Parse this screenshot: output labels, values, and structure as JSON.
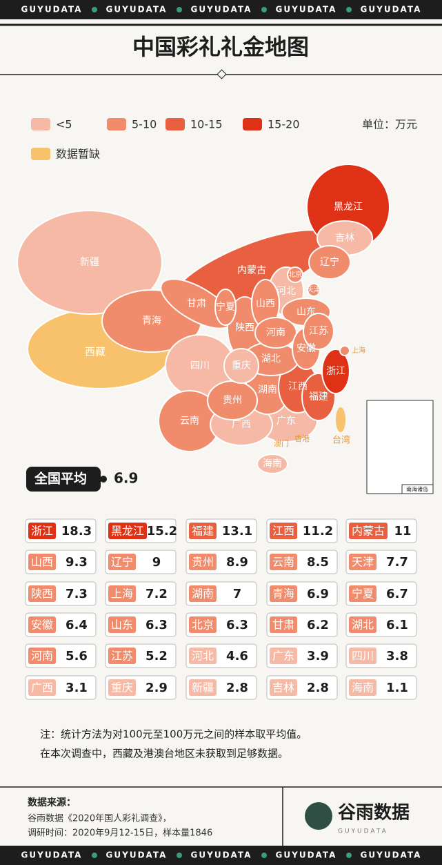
{
  "header": {
    "banner": "GUYUDATA",
    "title": "中国彩礼礼金地图"
  },
  "legend": {
    "bins": [
      {
        "label": "<5",
        "color": "#f6b9a6"
      },
      {
        "label": "5-10",
        "color": "#f08b6c"
      },
      {
        "label": "10-15",
        "color": "#e8603f"
      },
      {
        "label": "15-20",
        "color": "#df3115"
      }
    ],
    "missing": {
      "label": "数据暂缺",
      "color": "#f7c26b"
    },
    "unit": "单位：万元"
  },
  "provinces": [
    {
      "name": "浙江",
      "value": 18.3
    },
    {
      "name": "黑龙江",
      "value": 15.2
    },
    {
      "name": "福建",
      "value": 13.1
    },
    {
      "name": "江西",
      "value": 11.2
    },
    {
      "name": "内蒙古",
      "value": 11
    },
    {
      "name": "山西",
      "value": 9.3
    },
    {
      "name": "辽宁",
      "value": 9
    },
    {
      "name": "贵州",
      "value": 8.9
    },
    {
      "name": "云南",
      "value": 8.5
    },
    {
      "name": "天津",
      "value": 7.7
    },
    {
      "name": "陕西",
      "value": 7.3
    },
    {
      "name": "上海",
      "value": 7.2
    },
    {
      "name": "湖南",
      "value": 7
    },
    {
      "name": "青海",
      "value": 6.9
    },
    {
      "name": "宁夏",
      "value": 6.7
    },
    {
      "name": "安徽",
      "value": 6.4
    },
    {
      "name": "山东",
      "value": 6.3
    },
    {
      "name": "北京",
      "value": 6.3
    },
    {
      "name": "甘肃",
      "value": 6.2
    },
    {
      "name": "湖北",
      "value": 6.1
    },
    {
      "name": "河南",
      "value": 5.6
    },
    {
      "name": "江苏",
      "value": 5.2
    },
    {
      "name": "河北",
      "value": 4.6
    },
    {
      "name": "广东",
      "value": 3.9
    },
    {
      "name": "四川",
      "value": 3.8
    },
    {
      "name": "广西",
      "value": 3.1
    },
    {
      "name": "重庆",
      "value": 2.9
    },
    {
      "name": "新疆",
      "value": 2.8
    },
    {
      "name": "吉林",
      "value": 2.8
    },
    {
      "name": "海南",
      "value": 1.1
    }
  ],
  "map": {
    "extra_labels": [
      "西藏",
      "香港",
      "澳门",
      "台湾",
      "南海诸岛"
    ]
  },
  "average": {
    "label": "全国平均",
    "value": 6.9
  },
  "note": [
    "注：统计方法为对100元至100万元之间的样本取平均值。",
    "在本次调查中，西藏及港澳台地区未获取到足够数据。"
  ],
  "source": {
    "title": "数据来源：",
    "lines": [
      "谷雨数据《2020年国人彩礼调查》，",
      "调研时间：2020年9月12-15日，样本量1846"
    ]
  },
  "brand": {
    "name": "谷雨数据",
    "sub": "GUYUDATA"
  }
}
